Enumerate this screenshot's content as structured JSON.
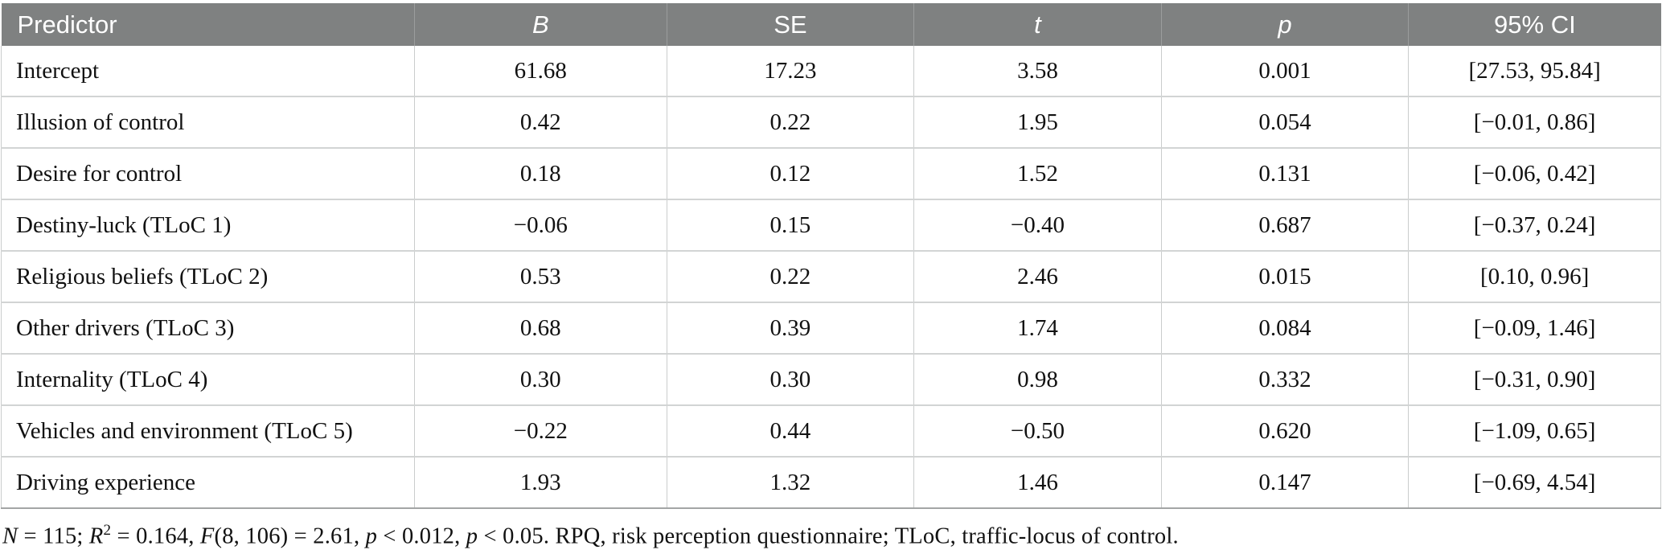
{
  "table": {
    "columns": [
      "Predictor",
      "B",
      "SE",
      "t",
      "p",
      "95% CI"
    ],
    "rows": [
      [
        "Intercept",
        "61.68",
        "17.23",
        "3.58",
        "0.001",
        "[27.53, 95.84]"
      ],
      [
        "Illusion of control",
        "0.42",
        "0.22",
        "1.95",
        "0.054",
        "[−0.01, 0.86]"
      ],
      [
        "Desire for control",
        "0.18",
        "0.12",
        "1.52",
        "0.131",
        "[−0.06, 0.42]"
      ],
      [
        "Destiny-luck (TLoC 1)",
        "−0.06",
        "0.15",
        "−0.40",
        "0.687",
        "[−0.37, 0.24]"
      ],
      [
        "Religious beliefs (TLoC 2)",
        "0.53",
        "0.22",
        "2.46",
        "0.015",
        "[0.10, 0.96]"
      ],
      [
        "Other drivers (TLoC 3)",
        "0.68",
        "0.39",
        "1.74",
        "0.084",
        "[−0.09, 1.46]"
      ],
      [
        "Internality (TLoC 4)",
        "0.30",
        "0.30",
        "0.98",
        "0.332",
        "[−0.31, 0.90]"
      ],
      [
        "Vehicles and environment (TLoC 5)",
        "−0.22",
        "0.44",
        "−0.50",
        "0.620",
        "[−1.09, 0.65]"
      ],
      [
        "Driving experience",
        "1.93",
        "1.32",
        "1.46",
        "0.147",
        "[−0.69, 4.54]"
      ]
    ]
  },
  "footnote": {
    "segments": [
      {
        "t": "N",
        "i": true
      },
      {
        "t": " = 115; ",
        "i": false
      },
      {
        "t": "R",
        "i": true
      },
      {
        "t": "2",
        "i": false,
        "sup": true
      },
      {
        "t": " = 0.164, ",
        "i": false
      },
      {
        "t": "F",
        "i": true
      },
      {
        "t": "(8, 106) = 2.61, ",
        "i": false
      },
      {
        "t": "p",
        "i": true
      },
      {
        "t": " < 0.012, ",
        "i": false
      },
      {
        "t": "p",
        "i": true
      },
      {
        "t": " < 0.05. RPQ, risk perception questionnaire; TLoC, traffic-locus of control.",
        "i": false
      }
    ]
  },
  "colors": {
    "header_background": "#7f8181",
    "header_text": "#ffffff",
    "cell_border": "#cacccc",
    "table_bottom_border": "#a3a5a5",
    "body_text": "#111111"
  }
}
